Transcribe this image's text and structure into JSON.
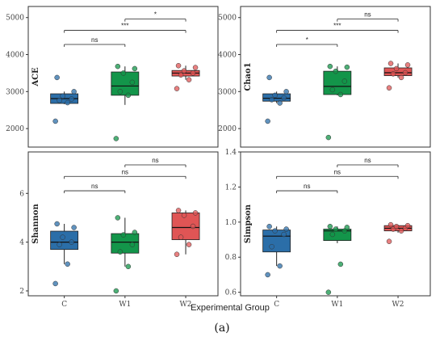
{
  "figure": {
    "caption": "(a)",
    "x_axis_title": "Experimental Group",
    "groups": [
      "C",
      "W1",
      "W2"
    ],
    "colors": {
      "C": "#2b6ea8",
      "W1": "#13954a",
      "W2": "#e05555"
    }
  },
  "chart_data": [
    {
      "type": "box",
      "ylabel": "ACE",
      "ylim": [
        1500,
        5300
      ],
      "yticks": [
        2000,
        3000,
        4000,
        5000
      ],
      "categories": [
        "C",
        "W1",
        "W2"
      ],
      "boxes": [
        {
          "group": "C",
          "whisker_low": 2660,
          "q1": 2680,
          "median": 2810,
          "q3": 2940,
          "whisker_high": 3000
        },
        {
          "group": "W1",
          "whisker_low": 2640,
          "q1": 2900,
          "median": 3150,
          "q3": 3530,
          "whisker_high": 3680
        },
        {
          "group": "W2",
          "whisker_low": 3320,
          "q1": 3420,
          "median": 3500,
          "q3": 3570,
          "whisker_high": 3700
        }
      ],
      "outliers": [
        {
          "group": "C",
          "values": [
            2200,
            3380
          ]
        },
        {
          "group": "W1",
          "values": [
            1730
          ]
        },
        {
          "group": "W2",
          "values": [
            3080
          ]
        }
      ],
      "points": [
        {
          "group": "C",
          "values": [
            2200,
            2700,
            2760,
            2800,
            2880,
            3000,
            3380
          ]
        },
        {
          "group": "W1",
          "values": [
            1730,
            2900,
            3000,
            3250,
            3500,
            3620,
            3680
          ]
        },
        {
          "group": "W2",
          "values": [
            3080,
            3320,
            3450,
            3500,
            3560,
            3650,
            3700
          ]
        }
      ],
      "comparisons": [
        {
          "pair": [
            "W1",
            "W2"
          ],
          "label": "*"
        },
        {
          "pair": [
            "C",
            "W2"
          ],
          "label": "***"
        },
        {
          "pair": [
            "C",
            "W1"
          ],
          "label": "ns"
        }
      ]
    },
    {
      "type": "box",
      "ylabel": "Chao1",
      "ylim": [
        1500,
        5300
      ],
      "yticks": [
        2000,
        3000,
        4000,
        5000
      ],
      "categories": [
        "C",
        "W1",
        "W2"
      ],
      "boxes": [
        {
          "group": "C",
          "whisker_low": 2690,
          "q1": 2740,
          "median": 2820,
          "q3": 2940,
          "whisker_high": 3000
        },
        {
          "group": "W1",
          "whisker_low": 2900,
          "q1": 2920,
          "median": 3140,
          "q3": 3550,
          "whisker_high": 3680
        },
        {
          "group": "W2",
          "whisker_low": 3380,
          "q1": 3430,
          "median": 3510,
          "q3": 3640,
          "whisker_high": 3760
        }
      ],
      "outliers": [
        {
          "group": "C",
          "values": [
            2200,
            3380
          ]
        },
        {
          "group": "W1",
          "values": [
            1760
          ]
        },
        {
          "group": "W2",
          "values": [
            3100
          ]
        }
      ],
      "points": [
        {
          "group": "C",
          "values": [
            2200,
            2690,
            2780,
            2830,
            2900,
            3000,
            3380
          ]
        },
        {
          "group": "W1",
          "values": [
            1760,
            2920,
            3050,
            3280,
            3550,
            3660,
            3680
          ]
        },
        {
          "group": "W2",
          "values": [
            3100,
            3380,
            3480,
            3510,
            3620,
            3720,
            3760
          ]
        }
      ],
      "comparisons": [
        {
          "pair": [
            "W1",
            "W2"
          ],
          "label": "ns"
        },
        {
          "pair": [
            "C",
            "W2"
          ],
          "label": "***"
        },
        {
          "pair": [
            "C",
            "W1"
          ],
          "label": "*"
        }
      ]
    },
    {
      "type": "box",
      "ylabel": "Shannon",
      "ylim": [
        1.8,
        7.7
      ],
      "yticks": [
        2,
        4,
        6
      ],
      "categories": [
        "C",
        "W1",
        "W2"
      ],
      "boxes": [
        {
          "group": "C",
          "whisker_low": 3.1,
          "q1": 3.7,
          "median": 4.0,
          "q3": 4.45,
          "whisker_high": 4.75
        },
        {
          "group": "W1",
          "whisker_low": 3.0,
          "q1": 3.55,
          "median": 4.0,
          "q3": 4.35,
          "whisker_high": 5.0
        },
        {
          "group": "W2",
          "whisker_low": 3.5,
          "q1": 4.1,
          "median": 4.6,
          "q3": 5.2,
          "whisker_high": 5.3
        }
      ],
      "outliers": [
        {
          "group": "C",
          "values": [
            2.3
          ]
        },
        {
          "group": "W1",
          "values": [
            2.0
          ]
        },
        {
          "group": "W2",
          "values": []
        }
      ],
      "points": [
        {
          "group": "C",
          "values": [
            2.3,
            3.1,
            3.9,
            4.0,
            4.2,
            4.6,
            4.75
          ]
        },
        {
          "group": "W1",
          "values": [
            2.0,
            3.0,
            3.6,
            3.9,
            4.3,
            4.4,
            5.0
          ]
        },
        {
          "group": "W2",
          "values": [
            3.5,
            3.9,
            4.2,
            4.65,
            5.1,
            5.2,
            5.3
          ]
        }
      ],
      "comparisons": [
        {
          "pair": [
            "W1",
            "W2"
          ],
          "label": "ns"
        },
        {
          "pair": [
            "C",
            "W2"
          ],
          "label": "ns"
        },
        {
          "pair": [
            "C",
            "W1"
          ],
          "label": "ns"
        }
      ]
    },
    {
      "type": "box",
      "ylabel": "Simpson",
      "ylim": [
        0.58,
        1.4
      ],
      "yticks": [
        0.6,
        0.8,
        1.0,
        1.2,
        1.4
      ],
      "categories": [
        "C",
        "W1",
        "W2"
      ],
      "boxes": [
        {
          "group": "C",
          "whisker_low": 0.75,
          "q1": 0.83,
          "median": 0.92,
          "q3": 0.955,
          "whisker_high": 0.975
        },
        {
          "group": "W1",
          "whisker_low": 0.88,
          "q1": 0.895,
          "median": 0.95,
          "q3": 0.96,
          "whisker_high": 0.975
        },
        {
          "group": "W2",
          "whisker_low": 0.94,
          "q1": 0.95,
          "median": 0.965,
          "q3": 0.98,
          "whisker_high": 0.985
        }
      ],
      "outliers": [
        {
          "group": "C",
          "values": [
            0.7
          ]
        },
        {
          "group": "W1",
          "values": [
            0.6,
            0.76
          ]
        },
        {
          "group": "W2",
          "values": [
            0.89
          ]
        }
      ],
      "points": [
        {
          "group": "C",
          "values": [
            0.7,
            0.75,
            0.86,
            0.93,
            0.95,
            0.96,
            0.975
          ]
        },
        {
          "group": "W1",
          "values": [
            0.6,
            0.76,
            0.93,
            0.95,
            0.96,
            0.97,
            0.975
          ]
        },
        {
          "group": "W2",
          "values": [
            0.89,
            0.95,
            0.96,
            0.965,
            0.975,
            0.98,
            0.985
          ]
        }
      ],
      "comparisons": [
        {
          "pair": [
            "W1",
            "W2"
          ],
          "label": "ns"
        },
        {
          "pair": [
            "C",
            "W2"
          ],
          "label": "ns"
        },
        {
          "pair": [
            "C",
            "W1"
          ],
          "label": "ns"
        }
      ]
    }
  ]
}
